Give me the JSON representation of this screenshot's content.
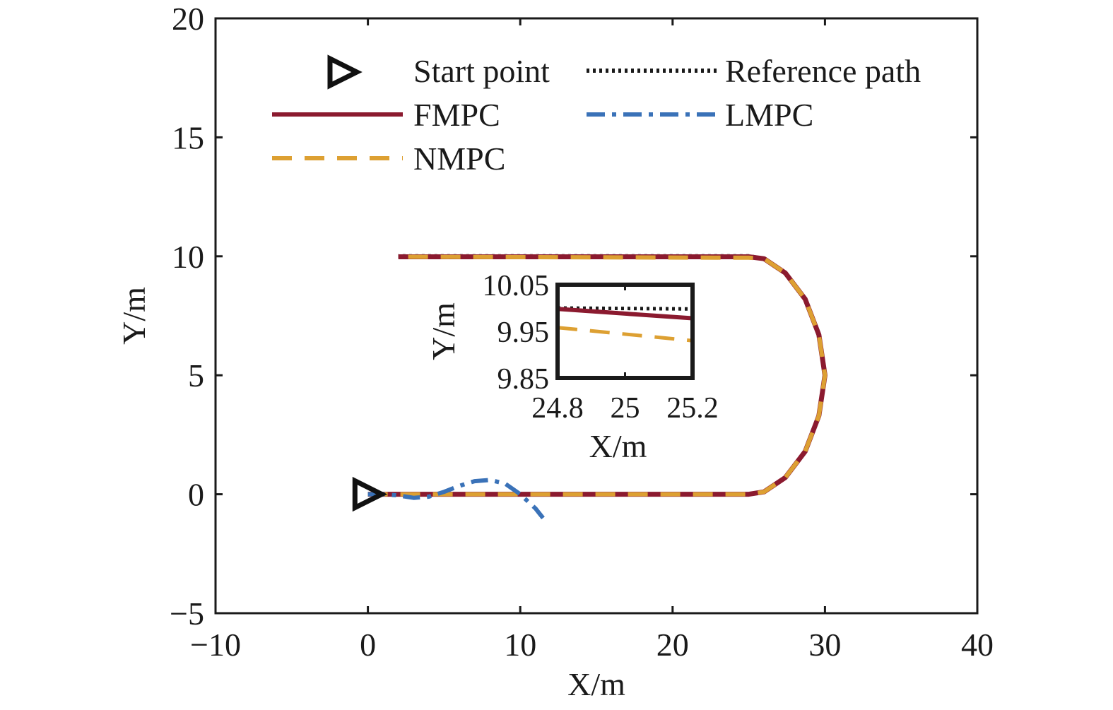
{
  "chart_data": {
    "type": "line",
    "xlabel": "X/m",
    "ylabel": "Y/m",
    "xlim": [
      -10,
      40
    ],
    "ylim": [
      -5,
      20
    ],
    "xticks": [
      -10,
      0,
      10,
      20,
      30,
      40
    ],
    "yticks": [
      -5,
      0,
      5,
      10,
      15,
      20
    ],
    "xtick_labels": [
      "−10",
      "0",
      "10",
      "20",
      "30",
      "40"
    ],
    "ytick_labels": [
      "−5",
      "0",
      "5",
      "10",
      "15",
      "20"
    ],
    "legend": {
      "position": "top",
      "entries": [
        {
          "label": "Start point",
          "marker": "triangle-right"
        },
        {
          "label": "Reference path",
          "style": "dotted"
        },
        {
          "label": "FMPC",
          "style": "solid"
        },
        {
          "label": "LMPC",
          "style": "dash-dot"
        },
        {
          "label": "NMPC",
          "style": "dashed"
        }
      ]
    },
    "start_point": {
      "x": -0.2,
      "y": 0
    },
    "series": [
      {
        "name": "Reference path",
        "color": "#1a1a1a",
        "style": "dotted",
        "x": [
          0,
          25,
          26.0,
          27.4,
          28.7,
          29.6,
          30,
          29.6,
          28.7,
          27.4,
          26.0,
          25,
          2
        ],
        "y": [
          0,
          0,
          0.1,
          0.7,
          1.8,
          3.3,
          5,
          6.7,
          8.2,
          9.3,
          9.9,
          10,
          10
        ]
      },
      {
        "name": "FMPC",
        "color": "#8b1a2f",
        "style": "solid",
        "x": [
          0,
          25,
          26.0,
          27.4,
          28.7,
          29.6,
          30,
          29.6,
          28.7,
          27.4,
          26.0,
          25,
          2
        ],
        "y": [
          0,
          0,
          0.1,
          0.7,
          1.8,
          3.3,
          5,
          6.7,
          8.2,
          9.3,
          9.9,
          9.98,
          9.98
        ]
      },
      {
        "name": "NMPC",
        "color": "#dda032",
        "style": "dashed",
        "x": [
          0,
          25,
          26.0,
          27.4,
          28.7,
          29.6,
          30,
          29.6,
          28.7,
          27.4,
          26.0,
          25,
          2
        ],
        "y": [
          0,
          0,
          0.1,
          0.7,
          1.8,
          3.3,
          5,
          6.7,
          8.2,
          9.3,
          9.9,
          9.94,
          9.98
        ]
      },
      {
        "name": "LMPC",
        "color": "#3a72b8",
        "style": "dash-dot",
        "x": [
          0,
          1,
          2,
          3,
          4,
          5,
          6,
          7,
          8,
          9,
          10,
          11,
          11.5
        ],
        "y": [
          0,
          0,
          -0.05,
          -0.15,
          -0.1,
          0.1,
          0.35,
          0.55,
          0.6,
          0.45,
          0.0,
          -0.6,
          -1.0
        ]
      }
    ],
    "inset": {
      "xlabel": "X/m",
      "ylabel": "Y/m",
      "xlim": [
        24.8,
        25.2
      ],
      "ylim": [
        9.85,
        10.05
      ],
      "xticks": [
        24.8,
        25,
        25.2
      ],
      "yticks": [
        9.85,
        9.95,
        10.05
      ],
      "xtick_labels": [
        "24.8",
        "25",
        "25.2"
      ],
      "ytick_labels": [
        "9.85",
        "9.95",
        "10.05"
      ],
      "series": [
        {
          "name": "Reference path",
          "x": [
            24.8,
            25.2
          ],
          "y": [
            10.0,
            9.998
          ]
        },
        {
          "name": "FMPC",
          "x": [
            24.8,
            25.2
          ],
          "y": [
            9.998,
            9.978
          ]
        },
        {
          "name": "NMPC",
          "x": [
            24.8,
            25.2
          ],
          "y": [
            9.958,
            9.93
          ]
        }
      ]
    }
  }
}
